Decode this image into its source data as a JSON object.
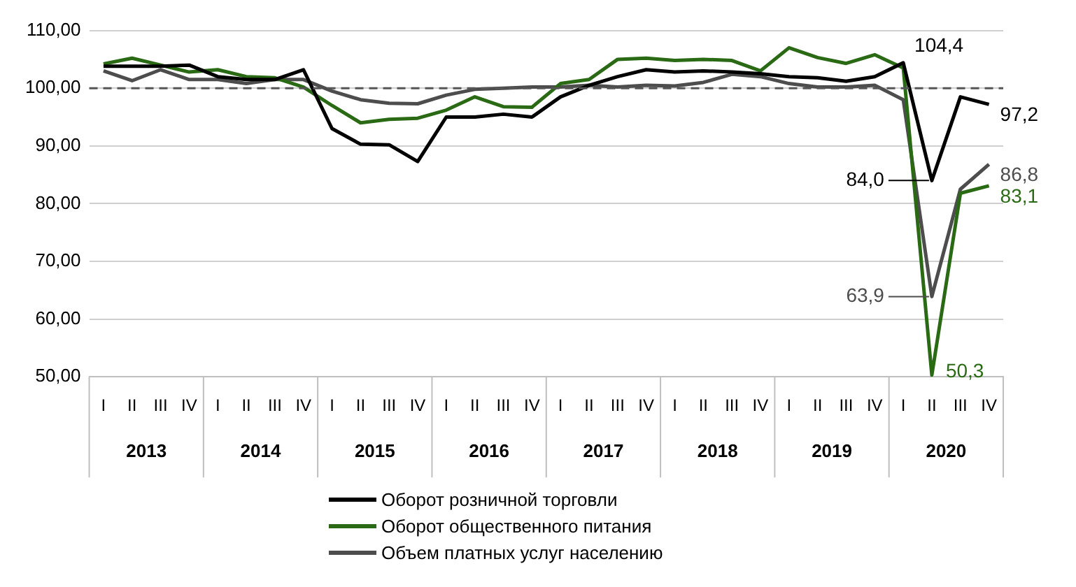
{
  "chart_data": {
    "type": "line",
    "categories": [
      "I",
      "II",
      "III",
      "IV",
      "I",
      "II",
      "III",
      "IV",
      "I",
      "II",
      "III",
      "IV",
      "I",
      "II",
      "III",
      "IV",
      "I",
      "II",
      "III",
      "IV",
      "I",
      "II",
      "III",
      "IV",
      "I",
      "II",
      "III",
      "IV",
      "I",
      "II",
      "III",
      "IV"
    ],
    "annotations": [
      "2013",
      "2014",
      "2015",
      "2016",
      "2017",
      "2018",
      "2019",
      "2020"
    ],
    "series": [
      {
        "name": "Оборот розничной торговли",
        "color": "#000000",
        "values": [
          103.8,
          103.8,
          103.8,
          104,
          102,
          101.5,
          101.5,
          103.2,
          93,
          90.3,
          90.2,
          87.3,
          95,
          95,
          95.5,
          95,
          98.5,
          100.5,
          102,
          103.2,
          102.8,
          103,
          102.8,
          102.5,
          102,
          101.8,
          101.2,
          102,
          104.4,
          84.0,
          98.5,
          97.2
        ],
        "value_labels": [
          null,
          null,
          null,
          null,
          null,
          null,
          null,
          null,
          null,
          null,
          null,
          null,
          null,
          null,
          null,
          null,
          null,
          null,
          null,
          null,
          null,
          null,
          null,
          null,
          null,
          null,
          null,
          null,
          "104,4",
          "84,0",
          null,
          "97,2"
        ]
      },
      {
        "name": "Оборот общественного питания",
        "color": "#2a6a14",
        "values": [
          104.2,
          105.2,
          104,
          102.8,
          103.2,
          102,
          101.8,
          100.2,
          97,
          94,
          94.6,
          94.8,
          96.2,
          98.5,
          96.8,
          96.7,
          100.8,
          101.5,
          105,
          105.2,
          104.8,
          105,
          104.8,
          103,
          107,
          105.3,
          104.3,
          105.8,
          103.5,
          50.3,
          81.8,
          83.1
        ],
        "value_labels": [
          null,
          null,
          null,
          null,
          null,
          null,
          null,
          null,
          null,
          null,
          null,
          null,
          null,
          null,
          null,
          null,
          null,
          null,
          null,
          null,
          null,
          null,
          null,
          null,
          null,
          null,
          null,
          null,
          null,
          "50,3",
          null,
          "83,1"
        ]
      },
      {
        "name": "Объем платных услуг населению",
        "color": "#4d4d4d",
        "values": [
          103,
          101.3,
          103.2,
          101.5,
          101.5,
          100.8,
          101.5,
          101.5,
          99.5,
          98,
          97.4,
          97.3,
          98.8,
          99.8,
          100,
          100.2,
          100.2,
          100.5,
          100.2,
          100.5,
          100.4,
          101,
          102.4,
          102,
          100.8,
          100.2,
          100.2,
          100.5,
          98,
          63.9,
          82.5,
          86.8
        ],
        "value_labels": [
          null,
          null,
          null,
          null,
          null,
          null,
          null,
          null,
          null,
          null,
          null,
          null,
          null,
          null,
          null,
          null,
          null,
          null,
          null,
          null,
          null,
          null,
          null,
          null,
          null,
          null,
          null,
          null,
          null,
          "63,9",
          null,
          "86,8"
        ]
      }
    ],
    "ylim": [
      50,
      110
    ],
    "yticks": [
      {
        "value": 50,
        "label": "50,00"
      },
      {
        "value": 60,
        "label": "60,00"
      },
      {
        "value": 70,
        "label": "70,00"
      },
      {
        "value": 80,
        "label": "80,00"
      },
      {
        "value": 90,
        "label": "90,00"
      },
      {
        "value": 100,
        "label": "100,00"
      },
      {
        "value": 110,
        "label": "110,00"
      }
    ],
    "ref_lines": [
      {
        "axis": "y",
        "value": 100,
        "label": null,
        "color": "#555555",
        "line_style": "dashed"
      }
    ],
    "grid": "y",
    "legend": "bottom",
    "marker": "none",
    "line_style": "solid"
  }
}
